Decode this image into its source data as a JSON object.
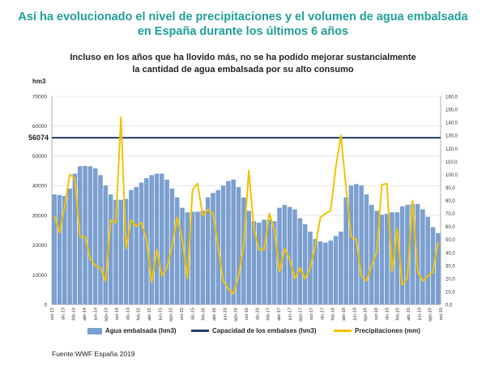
{
  "header": {
    "title": "Así ha evolucionado el nivel de precipitaciones y el volumen de agua embalsada\nen España durante los últimos 6 años",
    "subtitle_line1": "Incluso en los años que ha llovido más, no se ha podido mejorar sustancialmente",
    "subtitle_line2": "la cantidad de agua embalsada por su alto consumo"
  },
  "source": "Fuente:WWF España 2019",
  "colors": {
    "bars": "#7b9fcf",
    "capacity": "#1f3d6e",
    "precip": "#f2c200",
    "grid": "#d9d9d9"
  },
  "chart_data": {
    "type": "bar",
    "ylabel": "hm3",
    "ylim": [
      0,
      70000
    ],
    "y2lim": [
      0,
      160
    ],
    "yticks": [
      "0",
      "10000",
      "20000",
      "30000",
      "40000",
      "50000",
      "60000",
      "70000"
    ],
    "y2ticks": [
      "0,0",
      "10,0",
      "20,0",
      "30,0",
      "40,0",
      "50,0",
      "60,0",
      "70,0",
      "80,0",
      "90,0",
      "100,0",
      "110,0",
      "120,0",
      "130,0",
      "140,0",
      "150,0",
      "160,0"
    ],
    "capacity_label": "56074",
    "capacity_value": 56074,
    "x_tick_labels": [
      "oct-13",
      "dic-13",
      "feb-14",
      "abr-14",
      "jun-14",
      "ago-14",
      "oct-14",
      "dic-14",
      "feb-15",
      "abr-15",
      "jun-15",
      "ago-15",
      "oct-15",
      "dic-15",
      "feb-16",
      "abr-16",
      "jun-16",
      "ago-16",
      "oct-16",
      "dic-16",
      "feb-17",
      "abr-17",
      "jun-17",
      "ago-17",
      "oct-17",
      "dic-17",
      "feb-18",
      "abr-18",
      "jun-18",
      "ago-18",
      "oct-18",
      "dic-18",
      "feb-19",
      "abr-19",
      "jun-19",
      "ago-19",
      "oct-19"
    ],
    "series": [
      {
        "name": "Agua embalsada (hm3)",
        "kind": "bar",
        "values": [
          37000,
          36800,
          36500,
          39000,
          44000,
          46500,
          46600,
          46500,
          45800,
          43500,
          40000,
          37000,
          35200,
          35200,
          35500,
          38500,
          39500,
          41000,
          42500,
          43500,
          44000,
          44000,
          42000,
          39000,
          36000,
          32500,
          31000,
          31200,
          31200,
          31500,
          36000,
          37500,
          38500,
          40000,
          41500,
          42000,
          39500,
          36000,
          31500,
          28000,
          27500,
          28500,
          28500,
          28000,
          32500,
          33500,
          32800,
          32000,
          29000,
          27000,
          24500,
          22000,
          21200,
          20800,
          21500,
          23000,
          24500,
          36000,
          40000,
          40500,
          40000,
          37000,
          33500,
          31500,
          30200,
          30500,
          31000,
          31000,
          33000,
          33500,
          33800,
          33800,
          32000,
          29500,
          26000,
          24000
        ]
      },
      {
        "name": "Capacidad de los embalses (hm3)",
        "kind": "line",
        "values": [
          56074
        ]
      },
      {
        "name": "Precipitaciones (mm)",
        "kind": "line",
        "axis": "right",
        "values": [
          68,
          55,
          75,
          100,
          97,
          52,
          52,
          35,
          30,
          28,
          18,
          65,
          63,
          144,
          43,
          65,
          60,
          63,
          50,
          17,
          42,
          22,
          28,
          45,
          67,
          50,
          20,
          88,
          93,
          68,
          73,
          70,
          45,
          18,
          12,
          8,
          22,
          45,
          103,
          58,
          42,
          42,
          70,
          58,
          25,
          43,
          35,
          20,
          28,
          20,
          28,
          45,
          67,
          70,
          72,
          105,
          130,
          90,
          52,
          50,
          22,
          18,
          30,
          40,
          92,
          93,
          25,
          58,
          15,
          20,
          80,
          25,
          18,
          22,
          25,
          48
        ]
      }
    ]
  }
}
